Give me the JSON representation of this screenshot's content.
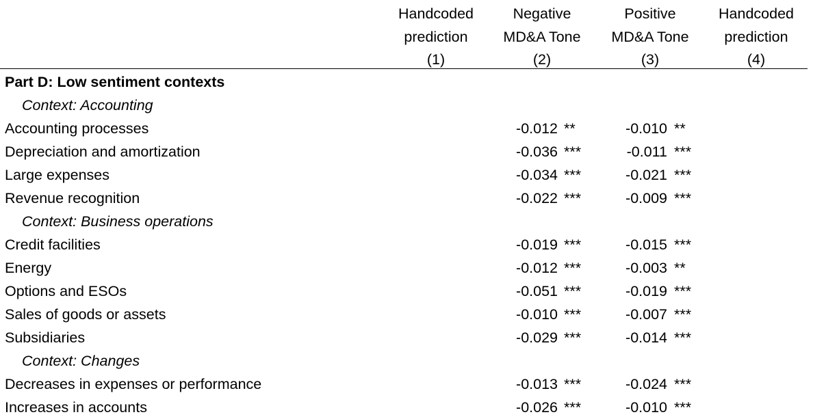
{
  "headers": [
    {
      "line1": "Handcoded",
      "line2": "prediction",
      "num": "(1)"
    },
    {
      "line1": "Negative",
      "line2": "MD&A Tone",
      "num": "(2)"
    },
    {
      "line1": "Positive",
      "line2": "MD&A Tone",
      "num": "(3)"
    },
    {
      "line1": "Handcoded",
      "line2": "prediction",
      "num": "(4)"
    }
  ],
  "rows": [
    {
      "kind": "part",
      "label": "Part D: Low sentiment contexts"
    },
    {
      "kind": "ctx",
      "label": "Context: Accounting"
    },
    {
      "kind": "data",
      "label": "Accounting processes",
      "neg": "-0.012",
      "neg_sig": "**",
      "pos": "-0.010",
      "pos_sig": "**"
    },
    {
      "kind": "data",
      "label": "Depreciation and amortization",
      "neg": "-0.036",
      "neg_sig": "***",
      "pos": "-0.011",
      "pos_sig": "***"
    },
    {
      "kind": "data",
      "label": "Large expenses",
      "neg": "-0.034",
      "neg_sig": "***",
      "pos": "-0.021",
      "pos_sig": "***"
    },
    {
      "kind": "data",
      "label": "Revenue recognition",
      "neg": "-0.022",
      "neg_sig": "***",
      "pos": "-0.009",
      "pos_sig": "***"
    },
    {
      "kind": "ctx",
      "label": "Context: Business operations"
    },
    {
      "kind": "data",
      "label": "Credit facilities",
      "neg": "-0.019",
      "neg_sig": "***",
      "pos": "-0.015",
      "pos_sig": "***"
    },
    {
      "kind": "data",
      "label": "Energy",
      "neg": "-0.012",
      "neg_sig": "***",
      "pos": "-0.003",
      "pos_sig": "**"
    },
    {
      "kind": "data",
      "label": "Options and ESOs",
      "neg": "-0.051",
      "neg_sig": "***",
      "pos": "-0.019",
      "pos_sig": "***"
    },
    {
      "kind": "data",
      "label": "Sales of goods or assets",
      "neg": "-0.010",
      "neg_sig": "***",
      "pos": "-0.007",
      "pos_sig": "***"
    },
    {
      "kind": "data",
      "label": "Subsidiaries",
      "neg": "-0.029",
      "neg_sig": "***",
      "pos": "-0.014",
      "pos_sig": "***"
    },
    {
      "kind": "ctx",
      "label": "Context: Changes"
    },
    {
      "kind": "data",
      "label": "Decreases in expenses or performance",
      "neg": "-0.013",
      "neg_sig": "***",
      "pos": "-0.024",
      "pos_sig": "***"
    },
    {
      "kind": "data",
      "label": "Increases in accounts",
      "neg": "-0.026",
      "neg_sig": "***",
      "pos": "-0.010",
      "pos_sig": "***"
    }
  ]
}
